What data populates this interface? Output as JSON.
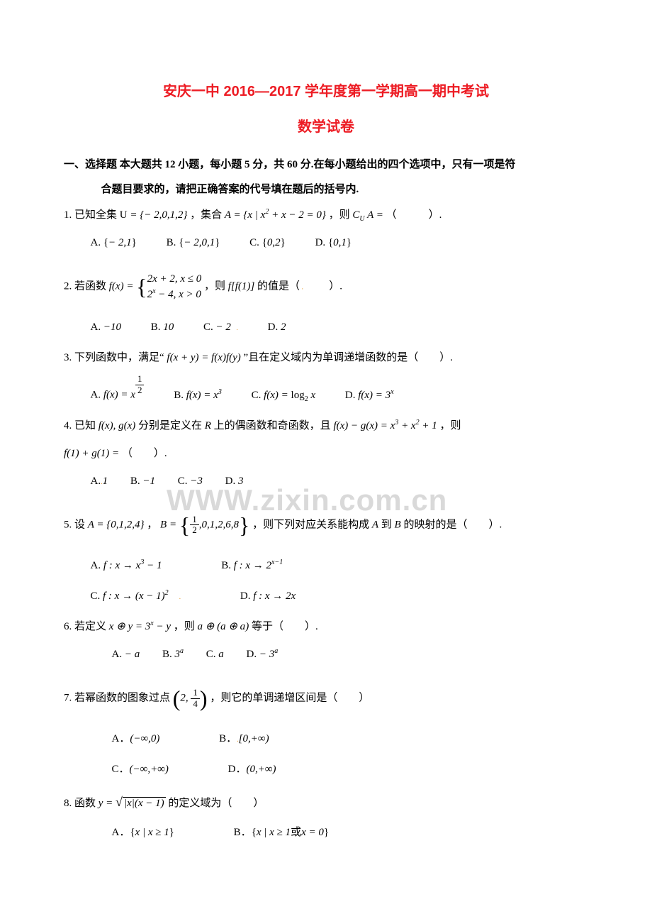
{
  "title": "安庆一中 2016—2017 学年度第一学期高一期中考试",
  "subtitle": "数学试卷",
  "section_head_1": "一、选择题 本大题共 12 小题，每小题 5 分，共 60 分.在每小题给出的四个选项中，只有一项是符",
  "section_head_2": "合题目要求的，请把正确答案的代号填在题后的括号内.",
  "watermark": "WWW.zixin.com.cn",
  "q1": {
    "stem_a": "1. 已知全集",
    "stem_b": "，集合",
    "stem_c": "，则",
    "stem_d": "（　　　）.",
    "U": "U = {−2,0,1,2}",
    "A": "A = {x | x² + x − 2 = 0}",
    "C": "C_U A =",
    "opts": {
      "A": "A. {−2,1}",
      "B": "B. {−2,0,1}",
      "C": "C. {0,2}",
      "D": "D. {0,1}"
    }
  },
  "q2": {
    "stem_a": "2. 若函数",
    "stem_b": "，则",
    "stem_c": "的值是（",
    "stem_d": "　　）.",
    "fx": "f(x) =",
    "p1": "2x + 2, x ≤ 0",
    "p2": "2ˣ − 4, x > 0",
    "ff1": "f[f(1)]",
    "opts": {
      "A": "A. −10",
      "B": "B. 10",
      "C": "C. −2",
      "D": "D. 2"
    }
  },
  "q3": {
    "stem_a": "3. 下列函数中，满足“",
    "stem_b": "”且在定义域内为单调递增函数的是（　　）.",
    "eq": "f(x + y) = f(x)f(y)",
    "opts": {
      "A": "A. f(x) = x^{1/2}",
      "B": "B. f(x) = x³",
      "C": "C. f(x) = log₂ x",
      "D": "D. f(x) = 3ˣ"
    }
  },
  "q4": {
    "stem_a": "4. 已知",
    "stem_b": "分别是定义在",
    "stem_c": "上的偶函数和奇函数，且",
    "stem_d": "，则",
    "fg": "f(x), g(x)",
    "R": "R",
    "eq": "f(x) − g(x) = x³ + x² + 1",
    "line2_a": "f(1) + g(1) =",
    "line2_b": "（　　）.",
    "opts": {
      "A": "A. 1",
      "B": "B. −1",
      "C": "C. −3",
      "D": "D. 3"
    }
  },
  "q5": {
    "stem_a": "5. 设",
    "stem_b": "，",
    "stem_c": "，则下列对应关系能构成",
    "stem_d": "到",
    "stem_e": "的映射的是（　　）.",
    "A": "A = {0,1,2,4}",
    "B": "B = {1/2, 0,1,2,6,8}",
    "Asym": "A",
    "Bsym": "B",
    "opts": {
      "A": "A. f : x → x³ − 1",
      "B": "B. f : x → 2^{x−1}",
      "C": "C. f : x → (x − 1)²",
      "D": "D. f : x → 2x"
    }
  },
  "q6": {
    "stem_a": "6. 若定义",
    "stem_b": "，则",
    "stem_c": "等于（　　）.",
    "def": "x ⊕ y = 3ˣ − y",
    "expr": "a ⊕ (a ⊕ a)",
    "opts": {
      "A": "A. −a",
      "B": "B. 3ᵃ",
      "C": "C. a",
      "D": "D. −3ᵃ"
    }
  },
  "q7": {
    "stem_a": "7. 若幂函数的图象过点",
    "stem_b": "，则它的单调递增区间是（　　）",
    "pt": "(2, 1/4)",
    "opts": {
      "A": "A．(−∞,0)",
      "B": "B．[0,+∞)",
      "C": "C．(−∞,+∞)",
      "D": "D．(0,+∞)"
    }
  },
  "q8": {
    "stem_a": "8. 函数",
    "stem_b": "的定义域为（　　）",
    "fn": "y = √(|x|(x − 1))",
    "opts": {
      "A": "A．{x | x ≥ 1}",
      "B": "B．{x | x ≥ 1 或 x = 0}"
    }
  }
}
